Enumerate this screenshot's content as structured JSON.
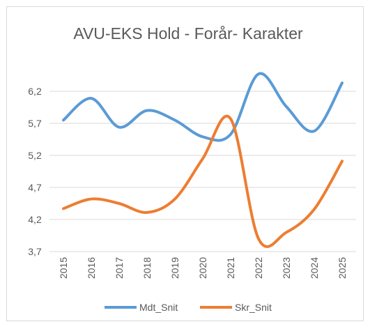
{
  "chart_data": {
    "type": "line",
    "title": "AVU-EKS Hold - Forår- Karakter",
    "categories": [
      "2015",
      "2016",
      "2017",
      "2018",
      "2019",
      "2020",
      "2021",
      "2022",
      "2023",
      "2024",
      "2025"
    ],
    "series": [
      {
        "name": "Mdt_Snit",
        "color": "#5b9bd5",
        "values": [
          5.75,
          6.09,
          5.64,
          5.9,
          5.75,
          5.49,
          5.53,
          6.47,
          5.96,
          5.58,
          6.33
        ]
      },
      {
        "name": "Skr_Snit",
        "color": "#ed7d31",
        "values": [
          4.37,
          4.52,
          4.45,
          4.31,
          4.52,
          5.15,
          5.77,
          3.9,
          4.0,
          4.36,
          5.11
        ]
      }
    ],
    "ylim": [
      3.7,
      6.5
    ],
    "yticks": [
      {
        "value": 3.7,
        "label": "3,7"
      },
      {
        "value": 4.2,
        "label": "4,2"
      },
      {
        "value": 4.7,
        "label": "4,7"
      },
      {
        "value": 5.2,
        "label": "5,2"
      },
      {
        "value": 5.7,
        "label": "5,7"
      },
      {
        "value": 6.2,
        "label": "6,2"
      }
    ],
    "grid": true,
    "legend": "bottom",
    "smooth": true
  }
}
